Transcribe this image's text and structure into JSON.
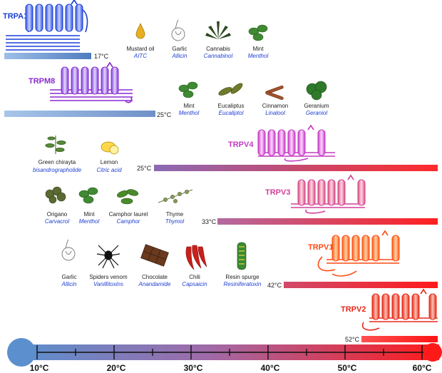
{
  "scale": {
    "ticks": [
      "10°C",
      "20°C",
      "30°C",
      "40°C",
      "50°C",
      "60°C"
    ],
    "start_color": "#5b8fce",
    "end_color": "#ff1a1a"
  },
  "channels": [
    {
      "name": "TRPA1",
      "color": "#1a3fd8",
      "threshold": "17°C",
      "bar_direction": "cold",
      "compounds": [
        {
          "source": "Mustard oil",
          "compound": "AITC",
          "icon": "mustard-oil-drop-icon"
        },
        {
          "source": "Garlic",
          "compound": "Allicin",
          "icon": "garlic-icon"
        },
        {
          "source": "Cannabis",
          "compound": "Cannabinol",
          "icon": "cannabis-leaf-icon"
        },
        {
          "source": "Mint",
          "compound": "Menthol",
          "icon": "mint-leaf-icon"
        }
      ]
    },
    {
      "name": "TRPM8",
      "color": "#8a2bd0",
      "threshold": "25°C",
      "bar_direction": "cold",
      "compounds": [
        {
          "source": "Mint",
          "compound": "Menthol",
          "icon": "mint-leaf-icon"
        },
        {
          "source": "Eucaliptus",
          "compound": "Eucaliptol",
          "icon": "eucalyptus-leaf-icon"
        },
        {
          "source": "Cinnamon",
          "compound": "Linalool",
          "icon": "cinnamon-stick-icon"
        },
        {
          "source": "Geranium",
          "compound": "Geraniol",
          "icon": "geranium-leaf-icon"
        }
      ]
    },
    {
      "name": "TRPV4",
      "color": "#c43bc4",
      "threshold": "25°C",
      "bar_direction": "warm",
      "compounds": [
        {
          "source": "Green chirayta",
          "compound": "bisandrographolide",
          "icon": "chirayta-plant-icon"
        },
        {
          "source": "Lemon",
          "compound": "Citric acid",
          "icon": "lemon-icon"
        }
      ]
    },
    {
      "name": "TRPV3",
      "color": "#d0409a",
      "threshold": "33°C",
      "bar_direction": "warm",
      "compounds": [
        {
          "source": "Origano",
          "compound": "Carvacrol",
          "icon": "oregano-icon"
        },
        {
          "source": "Mint",
          "compound": "Menthol",
          "icon": "mint-leaf-icon"
        },
        {
          "source": "Camphor laurel",
          "compound": "Camphor",
          "icon": "camphor-leaf-icon"
        },
        {
          "source": "Thyme",
          "compound": "Thymol",
          "icon": "thyme-icon"
        }
      ]
    },
    {
      "name": "TRPV1",
      "color": "#ff4a12",
      "threshold": "42°C",
      "bar_direction": "warm",
      "compounds": [
        {
          "source": "Garlic",
          "compound": "Allicin",
          "icon": "garlic-icon"
        },
        {
          "source": "Spiders venom",
          "compound": "Vanillitoxins",
          "icon": "spider-icon"
        },
        {
          "source": "Chocolate",
          "compound": "Anandamide",
          "icon": "chocolate-bar-icon"
        },
        {
          "source": "Chili",
          "compound": "Capsaicin",
          "icon": "chili-pepper-icon"
        },
        {
          "source": "Resin spurge",
          "compound": "Resiniferatoxin",
          "icon": "resin-spurge-icon"
        }
      ]
    },
    {
      "name": "TRPV2",
      "color": "#e8281a",
      "threshold": "52°C",
      "bar_direction": "warm",
      "compounds": []
    }
  ]
}
